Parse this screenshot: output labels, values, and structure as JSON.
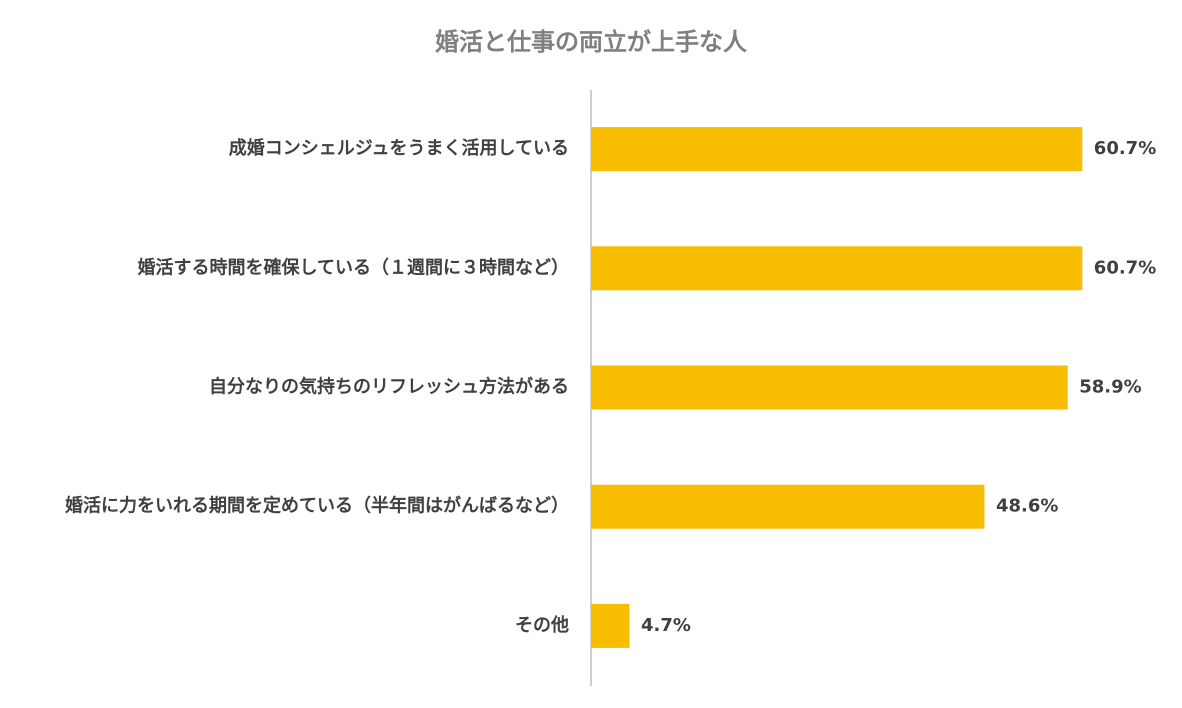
{
  "chart_data": {
    "type": "bar",
    "orientation": "horizontal",
    "title": "婚活と仕事の両立が上手な人",
    "categories": [
      "成婚コンシェルジュをうまく活用している",
      "婚活する時間を確保している（１週間に３時間など）",
      "自分なりの気持ちのリフレッシュ方法がある",
      "婚活に力をいれる期間を定めている（半年間はがんばるなど）",
      "その他"
    ],
    "values": [
      60.7,
      60.7,
      58.9,
      48.6,
      4.7
    ],
    "value_labels": [
      "60.7%",
      "60.7%",
      "58.9%",
      "48.6%",
      "4.7%"
    ],
    "unit": "%",
    "xlim": [
      0,
      70
    ],
    "bar_color": "#F8BC00",
    "axis_color": "#bfbfbf",
    "grid": false,
    "legend": "none"
  }
}
